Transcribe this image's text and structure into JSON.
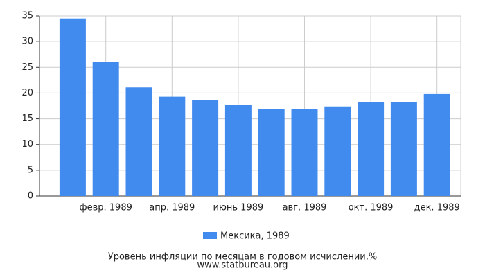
{
  "chart_data": {
    "type": "bar",
    "title": "Уровень инфляции по месяцам в годовом исчислении,%",
    "source": "www.statbureau.org",
    "categories": [
      null,
      "февр. 1989",
      null,
      "апр. 1989",
      null,
      "июнь 1989",
      null,
      "авг. 1989",
      null,
      "окт. 1989",
      null,
      "дек. 1989"
    ],
    "series": [
      {
        "name": "Мексика, 1989",
        "color": "#428bee",
        "values": [
          34.5,
          26,
          21.1,
          19.3,
          18.6,
          17.7,
          16.9,
          16.9,
          17.4,
          18.2,
          18.2,
          19.8
        ]
      }
    ],
    "ylim": [
      0,
      35
    ],
    "yticks": [
      0,
      5,
      10,
      15,
      20,
      25,
      30,
      35
    ],
    "grid": true
  }
}
